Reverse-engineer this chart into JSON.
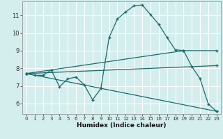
{
  "xlabel": "Humidex (Indice chaleur)",
  "xlim": [
    -0.5,
    23.5
  ],
  "ylim": [
    5.4,
    11.8
  ],
  "xticks": [
    0,
    1,
    2,
    3,
    4,
    5,
    6,
    7,
    8,
    9,
    10,
    11,
    12,
    13,
    14,
    15,
    16,
    17,
    18,
    19,
    20,
    21,
    22,
    23
  ],
  "yticks": [
    6,
    7,
    8,
    9,
    10,
    11
  ],
  "bg_color": "#d4eeee",
  "line_color": "#1a6b6b",
  "grid_color": "#ffffff",
  "series": [
    {
      "x": [
        0,
        1,
        2,
        3,
        4,
        5,
        6,
        7,
        8,
        9,
        10,
        11,
        12,
        13,
        14,
        15,
        16,
        17,
        18,
        19,
        20,
        21,
        22,
        23
      ],
      "y": [
        7.7,
        7.6,
        7.6,
        7.9,
        6.95,
        7.4,
        7.5,
        7.05,
        6.2,
        6.85,
        9.75,
        10.8,
        11.2,
        11.55,
        11.6,
        11.05,
        10.5,
        9.75,
        9.05,
        9.0,
        8.1,
        7.4,
        5.95,
        5.55
      ]
    },
    {
      "x": [
        0,
        23
      ],
      "y": [
        7.7,
        8.15
      ]
    },
    {
      "x": [
        0,
        19,
        23
      ],
      "y": [
        7.7,
        9.0,
        9.0
      ]
    },
    {
      "x": [
        0,
        23
      ],
      "y": [
        7.7,
        5.55
      ]
    }
  ]
}
